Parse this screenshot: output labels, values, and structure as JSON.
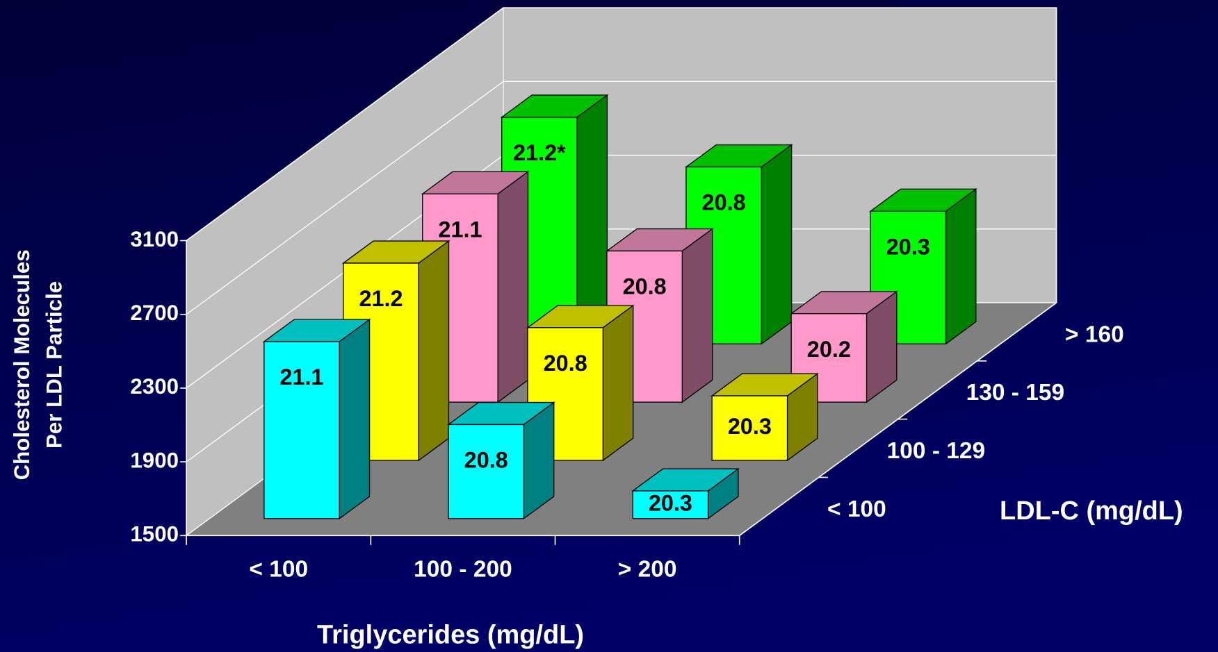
{
  "chart_data": {
    "type": "bar3d",
    "y_label": [
      "Cholesterol Molecules",
      "Per LDL Particle"
    ],
    "x_label": "Triglycerides (mg/dL)",
    "z_label": "LDL-C (mg/dL)",
    "categories": [
      "< 100",
      "100 - 200",
      "> 200"
    ],
    "series": [
      {
        "name": "< 100",
        "color": "#00ffff",
        "top": "#00c0c0",
        "side": "#008080",
        "values": [
          2460,
          2010,
          1650
        ],
        "annotations": [
          "21.1",
          "20.8",
          "20.3"
        ]
      },
      {
        "name": "100 - 129",
        "color": "#ffff00",
        "top": "#c0c000",
        "side": "#808000",
        "values": [
          2570,
          2220,
          1850
        ],
        "annotations": [
          "21.2",
          "20.8",
          "20.3"
        ]
      },
      {
        "name": "130 - 159",
        "color": "#ff99cc",
        "top": "#c0779a",
        "side": "#804d66",
        "values": [
          2630,
          2320,
          1980
        ],
        "annotations": [
          "21.1",
          "20.8",
          "20.2"
        ]
      },
      {
        "name": "> 160",
        "color": "#00ff00",
        "top": "#00c000",
        "side": "#008000",
        "values": [
          2730,
          2460,
          2220
        ],
        "annotations": [
          "21.2*",
          "20.8",
          "20.3"
        ]
      }
    ],
    "ylim": [
      1500,
      3100
    ],
    "yticks": [
      1500,
      1900,
      2300,
      2700,
      3100
    ],
    "grid": true
  }
}
